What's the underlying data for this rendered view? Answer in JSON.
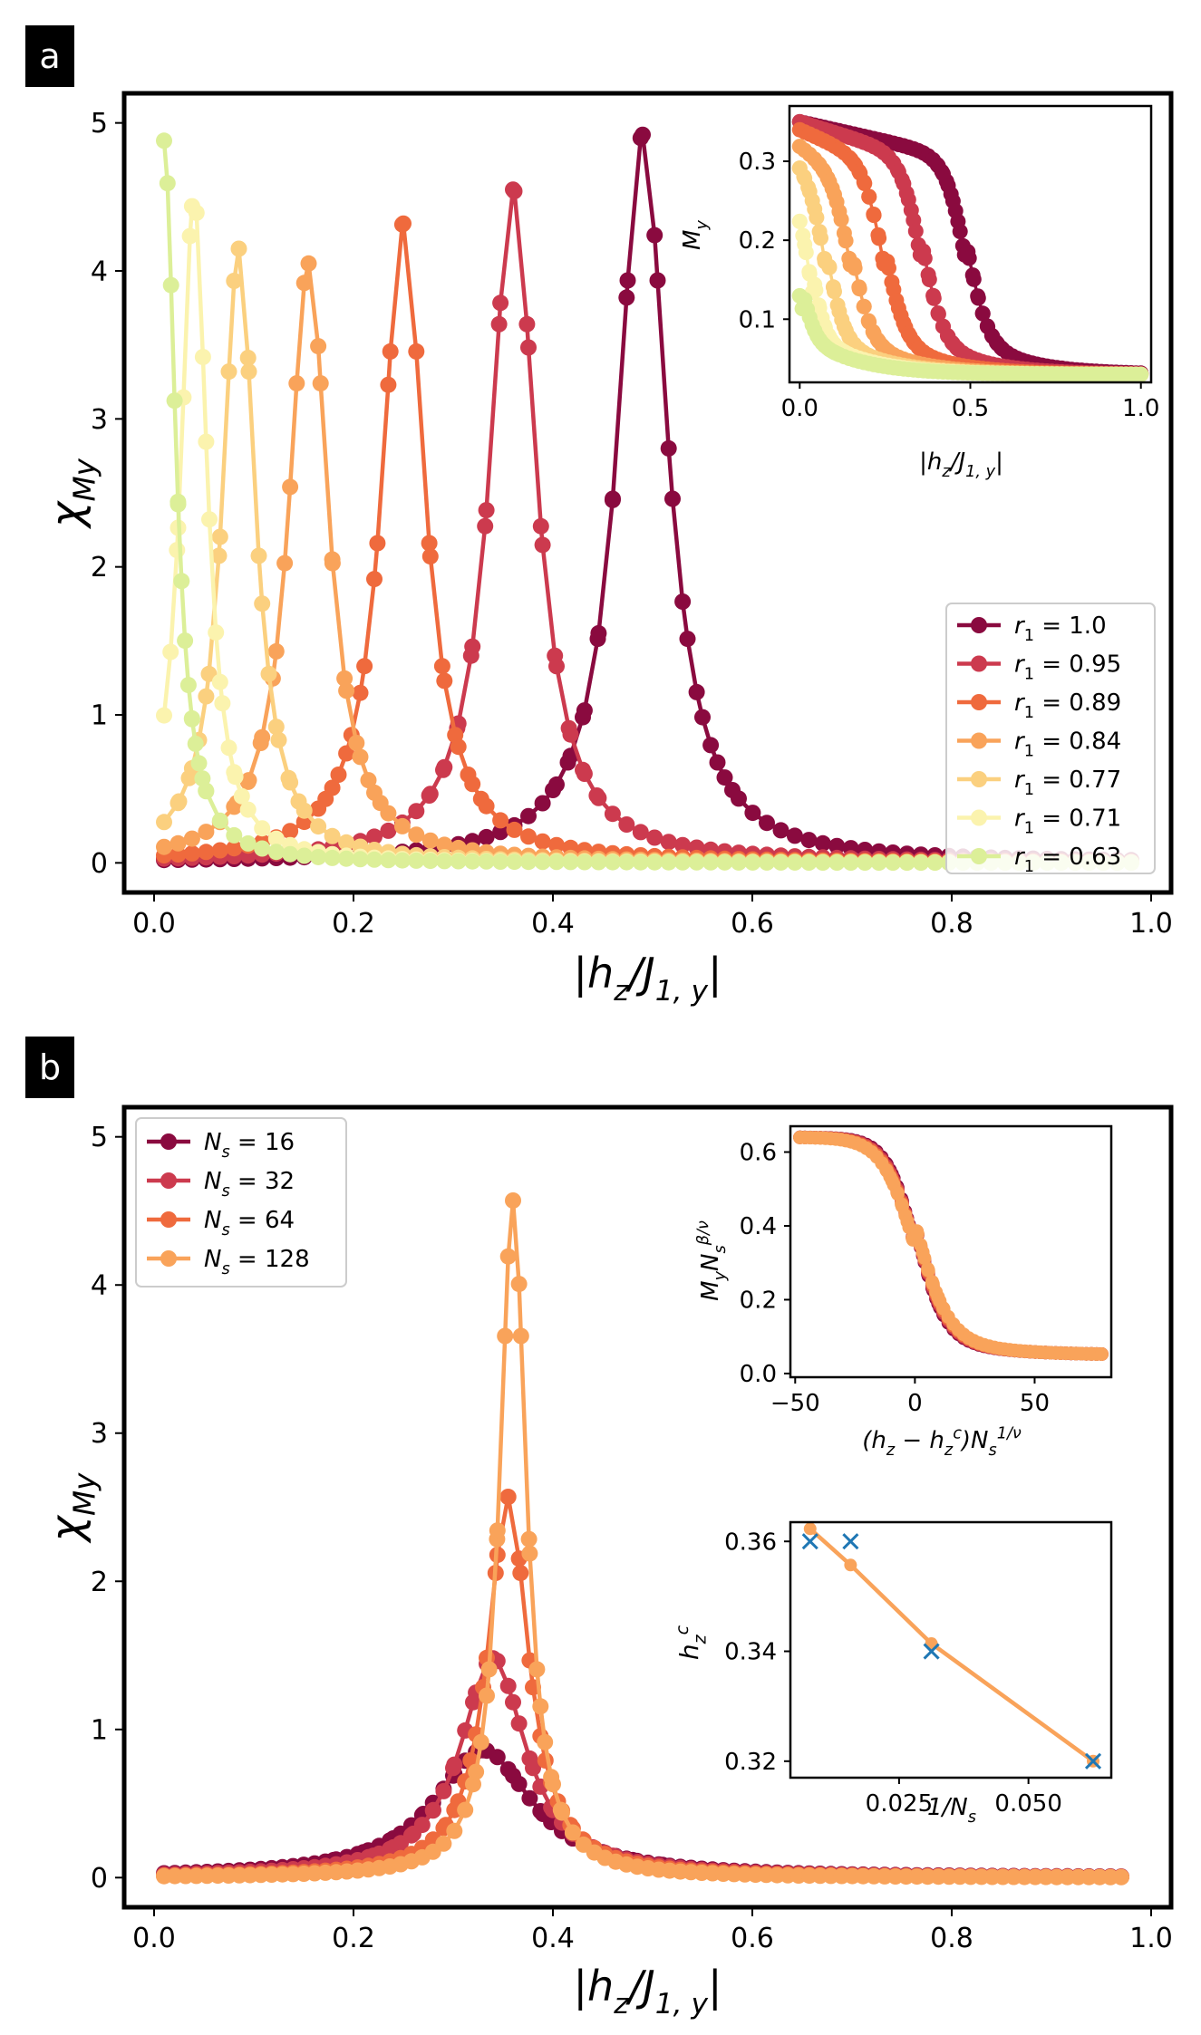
{
  "chart_data": [
    {
      "panel": "a",
      "type": "line",
      "xlabel": "|h_z/J_{1,y}|",
      "ylabel": "χ_{M_y}",
      "xlim": [
        -0.03,
        1.02
      ],
      "ylim": [
        -0.2,
        5.2
      ],
      "xticks": [
        0.0,
        0.2,
        0.4,
        0.6,
        0.8,
        1.0
      ],
      "yticks": [
        0,
        1,
        2,
        3,
        4,
        5
      ],
      "legend_position": "lower-right",
      "series": [
        {
          "name": "r_1 = 1.0",
          "color": "#8a0a3f",
          "peak_x": 0.49,
          "peak_y": 4.92,
          "width": 0.03,
          "tail": 0.04,
          "x_start": 0.01,
          "x_end": 0.98
        },
        {
          "name": "r_1 = 0.95",
          "color": "#cc3a4e",
          "peak_x": 0.36,
          "peak_y": 4.55,
          "width": 0.028,
          "tail": 0.04,
          "x_start": 0.01,
          "x_end": 0.98
        },
        {
          "name": "r_1 = 0.89",
          "color": "#ef6a3d",
          "peak_x": 0.25,
          "peak_y": 4.32,
          "width": 0.026,
          "tail": 0.04,
          "x_start": 0.01,
          "x_end": 0.98
        },
        {
          "name": "r_1 = 0.84",
          "color": "#f9a35a",
          "peak_x": 0.155,
          "peak_y": 4.05,
          "width": 0.024,
          "tail": 0.04,
          "x_start": 0.01,
          "x_end": 0.98
        },
        {
          "name": "r_1 = 0.77",
          "color": "#fbd07f",
          "peak_x": 0.085,
          "peak_y": 4.15,
          "width": 0.02,
          "tail": 0.04,
          "x_start": 0.01,
          "x_end": 0.98
        },
        {
          "name": "r_1 = 0.71",
          "color": "#fbf3ae",
          "peak_x": 0.04,
          "peak_y": 4.5,
          "width": 0.016,
          "tail": 0.04,
          "x_start": 0.01,
          "x_end": 0.98
        },
        {
          "name": "r_1 = 0.63",
          "color": "#dcef98",
          "peak_x": 0.01,
          "peak_y": 4.88,
          "width": 0.014,
          "tail": 0.04,
          "x_start": 0.01,
          "x_end": 0.98
        }
      ],
      "inset": {
        "xlabel": "|h_z/J_{1,y}|",
        "ylabel": "M_y",
        "xlim": [
          -0.03,
          1.03
        ],
        "ylim": [
          0.02,
          0.37
        ],
        "xticks": [
          0.0,
          0.5,
          1.0
        ],
        "yticks": [
          0.1,
          0.2,
          0.3
        ],
        "curves": [
          {
            "color": "#8a0a3f",
            "start": 0.35,
            "center": 0.49,
            "width": 0.03,
            "end": 0.03
          },
          {
            "color": "#cc3a4e",
            "start": 0.35,
            "center": 0.36,
            "width": 0.03,
            "end": 0.03
          },
          {
            "color": "#ef6a3d",
            "start": 0.34,
            "center": 0.25,
            "width": 0.03,
            "end": 0.03
          },
          {
            "color": "#f9a35a",
            "start": 0.32,
            "center": 0.155,
            "width": 0.028,
            "end": 0.03
          },
          {
            "color": "#fbd07f",
            "start": 0.3,
            "center": 0.085,
            "width": 0.025,
            "end": 0.03
          },
          {
            "color": "#fbf3ae",
            "start": 0.25,
            "center": 0.04,
            "width": 0.02,
            "end": 0.03
          },
          {
            "color": "#dcef98",
            "start": 0.19,
            "center": 0.01,
            "width": 0.02,
            "end": 0.03
          }
        ]
      }
    },
    {
      "panel": "b",
      "type": "line",
      "xlabel": "|h_z/J_{1,y}|",
      "ylabel": "χ_{M_y}",
      "xlim": [
        -0.03,
        1.02
      ],
      "ylim": [
        -0.2,
        5.2
      ],
      "xticks": [
        0.0,
        0.2,
        0.4,
        0.6,
        0.8,
        1.0
      ],
      "yticks": [
        0,
        1,
        2,
        3,
        4,
        5
      ],
      "legend_position": "upper-left",
      "series": [
        {
          "name": "N_s = 16",
          "color": "#8a0a3f",
          "peak_x": 0.33,
          "peak_y": 0.86,
          "width": 0.06,
          "tail": 0.06,
          "x_start": 0.01,
          "x_end": 0.97
        },
        {
          "name": "N_s = 32",
          "color": "#cc3a4e",
          "peak_x": 0.34,
          "peak_y": 1.48,
          "width": 0.04,
          "tail": 0.06,
          "x_start": 0.01,
          "x_end": 0.97
        },
        {
          "name": "N_s = 64",
          "color": "#ef6a3d",
          "peak_x": 0.355,
          "peak_y": 2.57,
          "width": 0.025,
          "tail": 0.06,
          "x_start": 0.01,
          "x_end": 0.97
        },
        {
          "name": "N_s = 128",
          "color": "#f9a35a",
          "peak_x": 0.36,
          "peak_y": 4.57,
          "width": 0.016,
          "tail": 0.06,
          "x_start": 0.01,
          "x_end": 0.97
        }
      ],
      "inset_collapse": {
        "xlabel": "(h_z − h_z^c) N_s^{1/ν}",
        "ylabel": "M_y N_s^{β/ν}",
        "xlim": [
          -52,
          82
        ],
        "ylim": [
          -0.01,
          0.67
        ],
        "xticks": [
          -50,
          0,
          50
        ],
        "yticks": [
          0.0,
          0.2,
          0.4,
          0.6
        ],
        "curve": {
          "start": 0.64,
          "end": 0.05,
          "center": 0,
          "width": 6
        },
        "colors": [
          "#8a0a3f",
          "#cc3a4e",
          "#ef6a3d",
          "#f9a35a"
        ]
      },
      "inset_fit": {
        "xlabel": "1/N_s",
        "ylabel": "h_z^c",
        "xlim": [
          0.004,
          0.066
        ],
        "ylim": [
          0.317,
          0.3635
        ],
        "xticks": [
          0.025,
          0.05
        ],
        "xtick_labels": [
          "0.025",
          "0.050"
        ],
        "yticks": [
          0.32,
          0.34,
          0.36
        ],
        "markers_x": [
          {
            "x": 0.0078125,
            "y": 0.36
          },
          {
            "x": 0.015625,
            "y": 0.36
          },
          {
            "x": 0.03125,
            "y": 0.34
          },
          {
            "x": 0.0625,
            "y": 0.32
          }
        ],
        "fit_points": [
          {
            "x": 0.0078125,
            "y": 0.3623
          },
          {
            "x": 0.015625,
            "y": 0.3557
          },
          {
            "x": 0.03125,
            "y": 0.3414
          },
          {
            "x": 0.0625,
            "y": 0.32
          }
        ],
        "fit_color": "#f9a35a",
        "marker_color": "#1f77b4"
      }
    }
  ],
  "panel_labels": [
    "a",
    "b"
  ]
}
